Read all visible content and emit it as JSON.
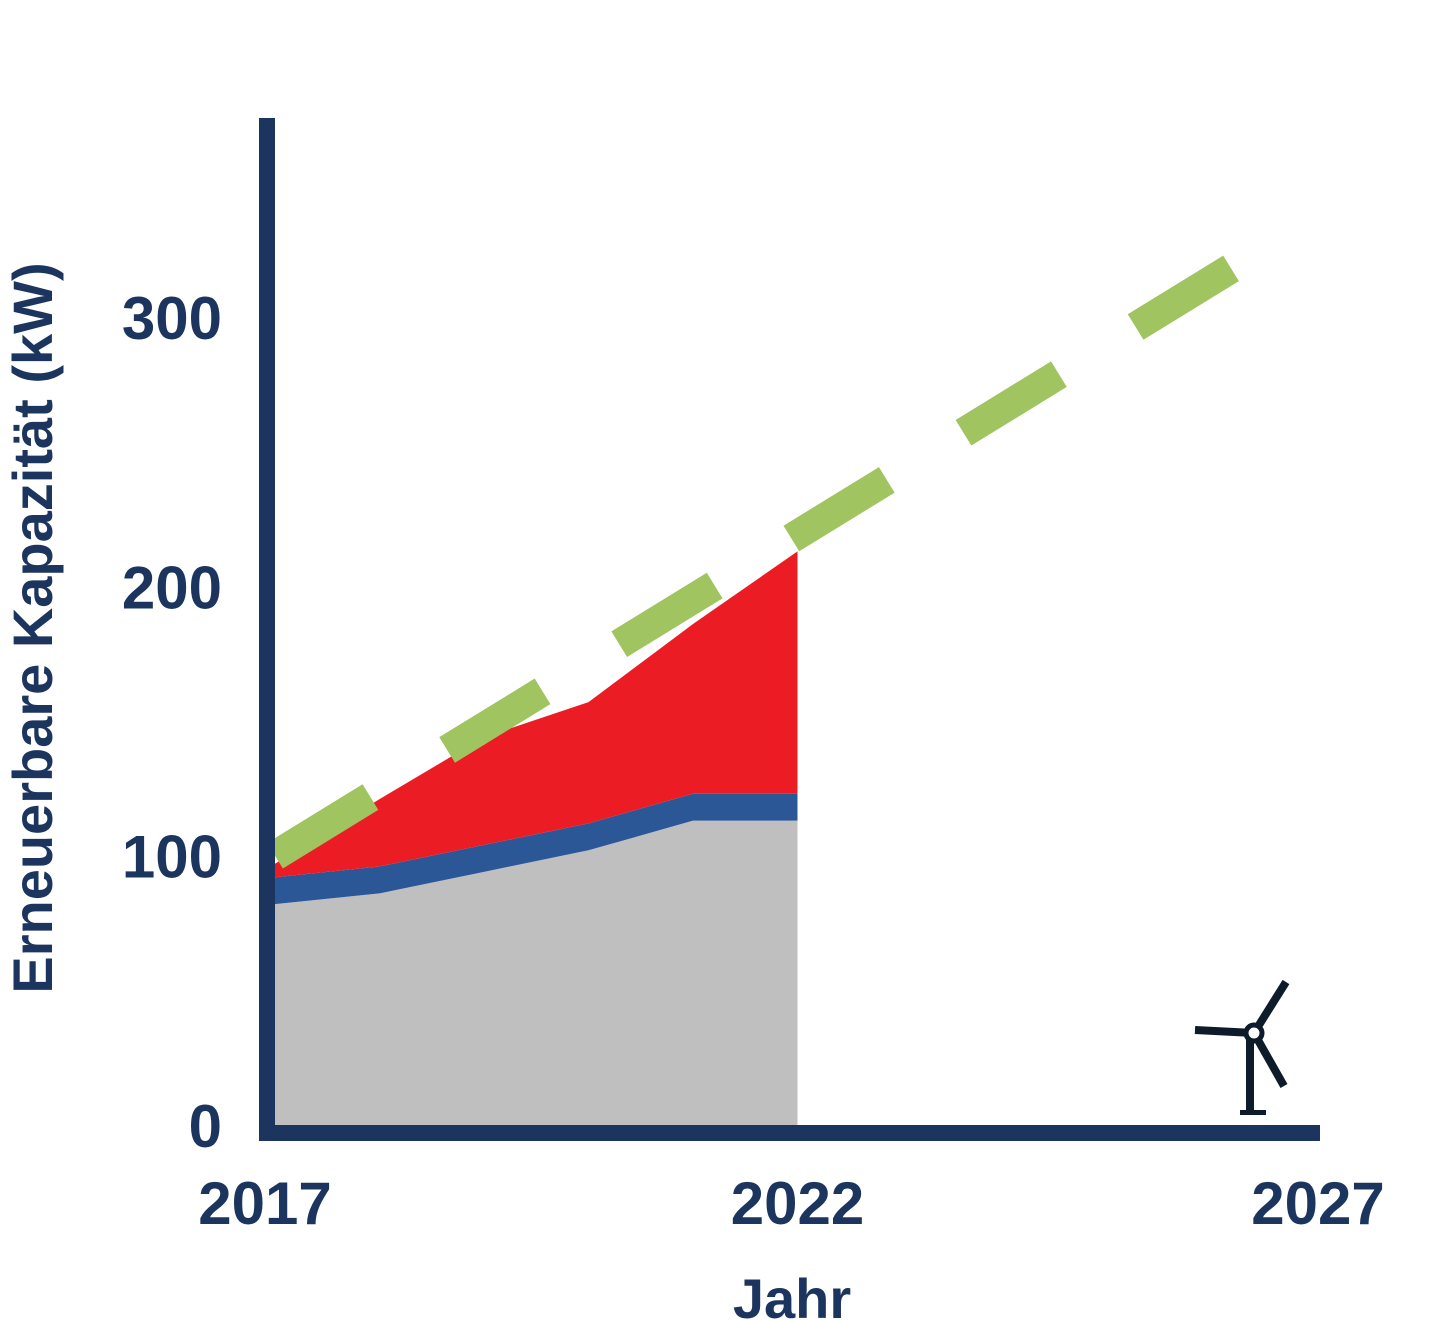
{
  "chart_data": {
    "type": "area",
    "xlabel": "Jahr",
    "ylabel": "Erneuerbare Kapazität (kW)",
    "x_ticks": [
      "2017",
      "2022",
      "2027"
    ],
    "y_ticks": [
      "0",
      "100",
      "200",
      "300"
    ],
    "xlim": [
      2017,
      2027
    ],
    "ylim": [
      0,
      375
    ],
    "grid": false,
    "x": [
      2017,
      2018,
      2019,
      2020,
      2021,
      2022
    ],
    "series": [
      {
        "color": "#bfbfbf",
        "values": [
          82,
          86,
          94,
          102,
          113,
          113
        ]
      },
      {
        "color": "#2b5797",
        "values": [
          10,
          10,
          10,
          10,
          10,
          10
        ]
      },
      {
        "color": "#ec1c24",
        "values": [
          5,
          25,
          40,
          45,
          63,
          90
        ]
      }
    ],
    "target_line": {
      "color": "#a0c45f",
      "style": "dashed",
      "x": [
        2017,
        2027
      ],
      "y": [
        100,
        325
      ]
    },
    "icon": "wind-turbine-icon",
    "colors": {
      "axis": "#1c355e",
      "text": "#1c355e"
    }
  }
}
